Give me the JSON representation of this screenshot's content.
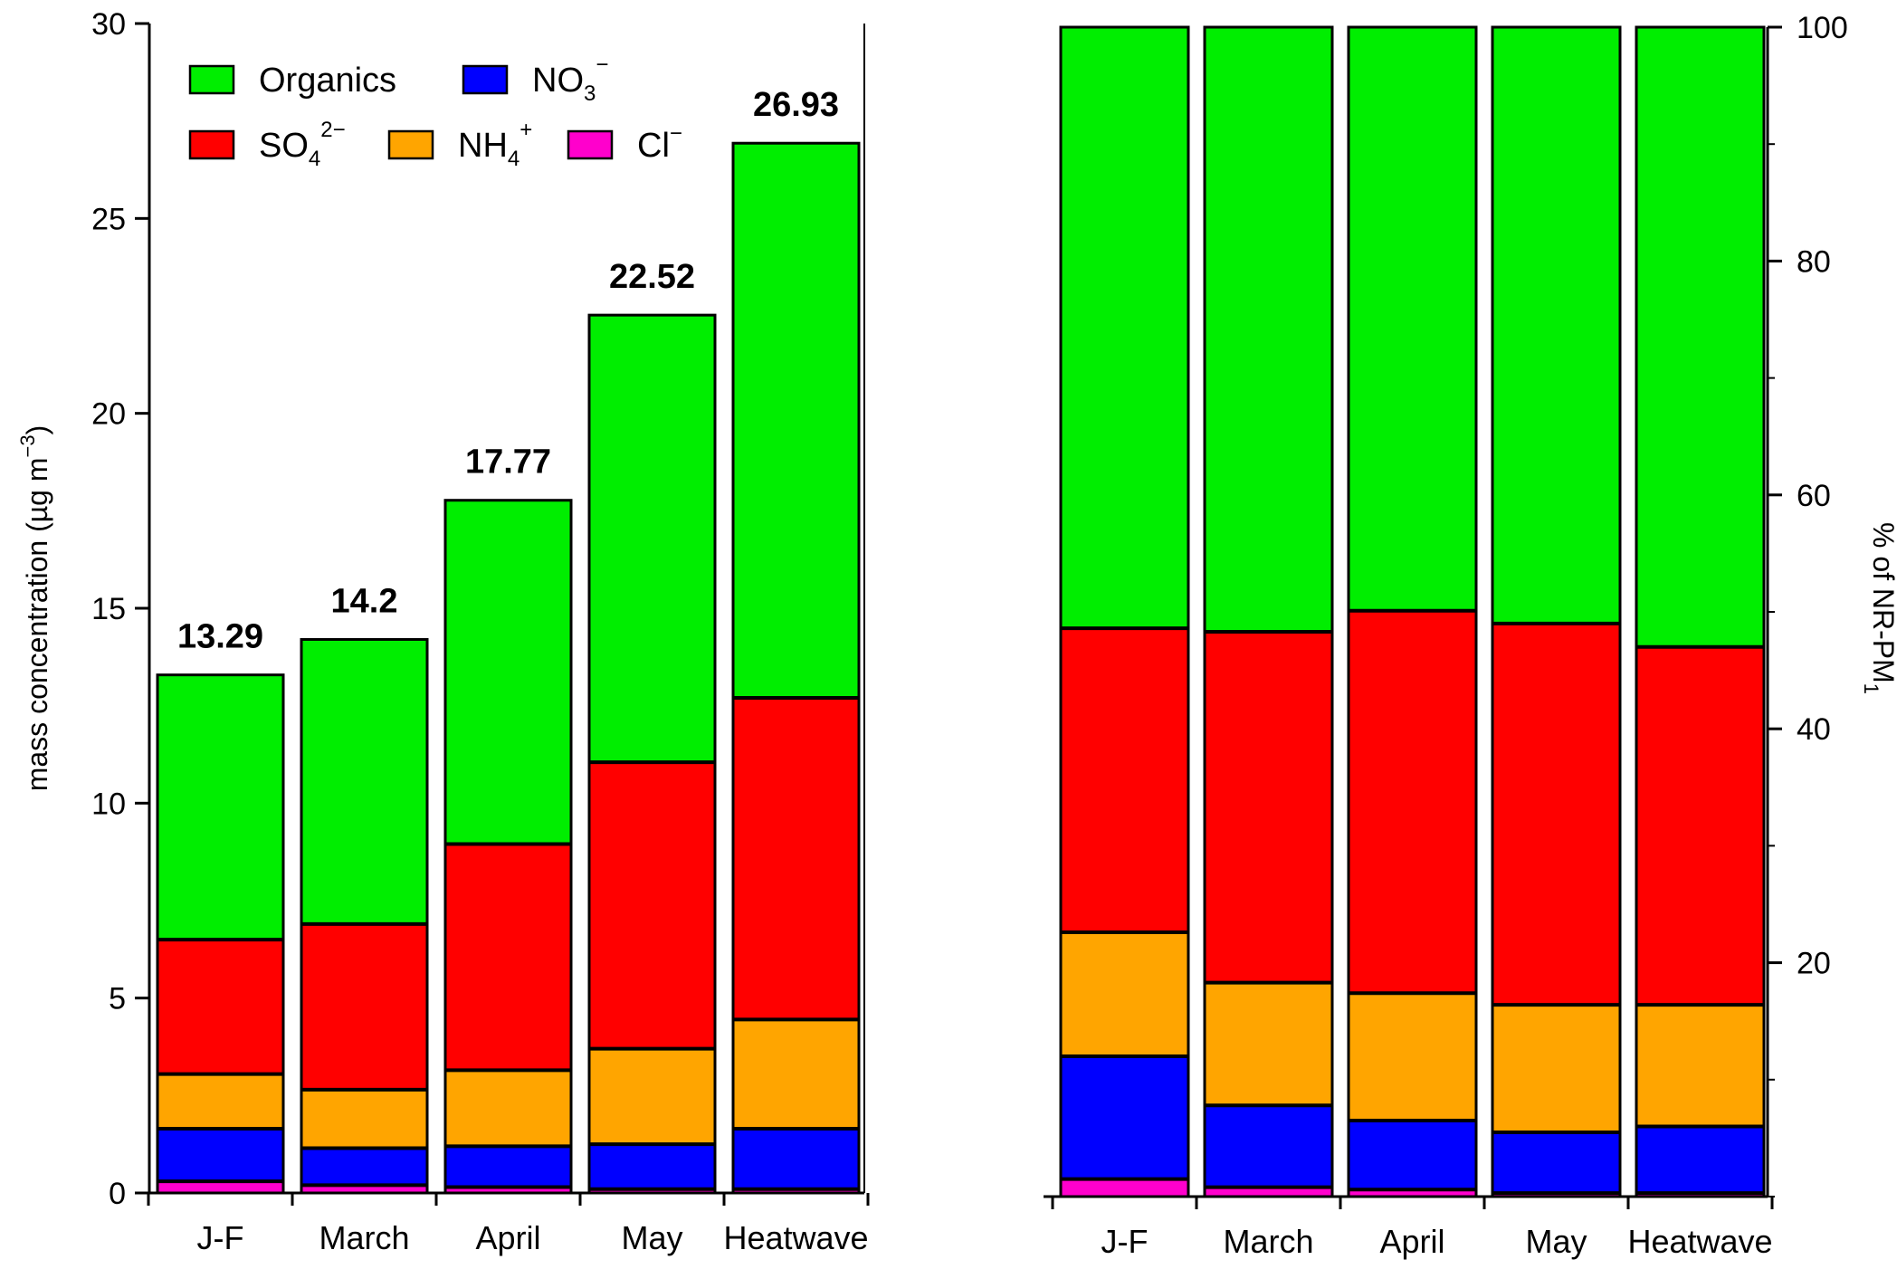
{
  "chart_data": [
    {
      "type": "bar",
      "stacked": true,
      "categories": [
        "J-F",
        "March",
        "April",
        "May",
        "Heatwave"
      ],
      "series": [
        {
          "name": "Cl",
          "color": "#FF00CC",
          "values": [
            0.3,
            0.2,
            0.15,
            0.1,
            0.1
          ]
        },
        {
          "name": "NO3",
          "color": "#0000FF",
          "values": [
            1.35,
            0.95,
            1.05,
            1.15,
            1.55
          ]
        },
        {
          "name": "NH4",
          "color": "#FFA500",
          "values": [
            1.4,
            1.5,
            1.95,
            2.45,
            2.8
          ]
        },
        {
          "name": "SO4",
          "color": "#FF0000",
          "values": [
            3.45,
            4.25,
            5.8,
            7.35,
            8.25
          ]
        },
        {
          "name": "Organics",
          "color": "#00EE00",
          "values": [
            6.79,
            7.3,
            8.82,
            11.47,
            14.23
          ]
        }
      ],
      "totals": [
        "13.29",
        "14.2",
        "17.77",
        "22.52",
        "26.93"
      ],
      "ylabel": "mass concentration (µg m",
      "ylabel_sup": "−3",
      "ylabel_close": ")",
      "ylim": [
        0,
        30
      ],
      "yticks": [
        0,
        5,
        10,
        15,
        20,
        25,
        30
      ],
      "grid": false
    },
    {
      "type": "bar",
      "stacked": true,
      "categories": [
        "J-F",
        "March",
        "April",
        "May",
        "Heatwave"
      ],
      "series": [
        {
          "name": "Cl",
          "color": "#FF00CC",
          "values": [
            1.5,
            0.8,
            0.6,
            0.3,
            0.3
          ]
        },
        {
          "name": "NO3",
          "color": "#0000FF",
          "values": [
            10.5,
            7.0,
            5.9,
            5.2,
            5.7
          ]
        },
        {
          "name": "NH4",
          "color": "#FFA500",
          "values": [
            10.6,
            10.5,
            10.9,
            10.9,
            10.4
          ]
        },
        {
          "name": "SO4",
          "color": "#FF0000",
          "values": [
            26.0,
            30.0,
            32.7,
            32.6,
            30.6
          ]
        },
        {
          "name": "Organics",
          "color": "#00EE00",
          "values": [
            51.4,
            51.7,
            49.9,
            51.0,
            53.0
          ]
        }
      ],
      "ylabel": "% of NR-PM",
      "ylabel_sub": "1",
      "ylim": [
        0,
        100
      ],
      "yticks": [
        20,
        40,
        60,
        80,
        100
      ],
      "grid": false
    }
  ],
  "legend": {
    "placement": "top-left of left panel",
    "items": [
      {
        "key": "Organics",
        "label": "Organics",
        "sup": "",
        "sub": "",
        "color": "#00EE00"
      },
      {
        "key": "NO3",
        "label": "NO",
        "sub": "3",
        "sup": "−",
        "color": "#0000FF"
      },
      {
        "key": "SO4",
        "label": "SO",
        "sub": "4",
        "sup": "2−",
        "color": "#FF0000"
      },
      {
        "key": "NH4",
        "label": "NH",
        "sub": "4",
        "sup": "+",
        "color": "#FFA500"
      },
      {
        "key": "Cl",
        "label": "Cl",
        "sub": "",
        "sup": "−",
        "color": "#FF00CC"
      }
    ]
  }
}
